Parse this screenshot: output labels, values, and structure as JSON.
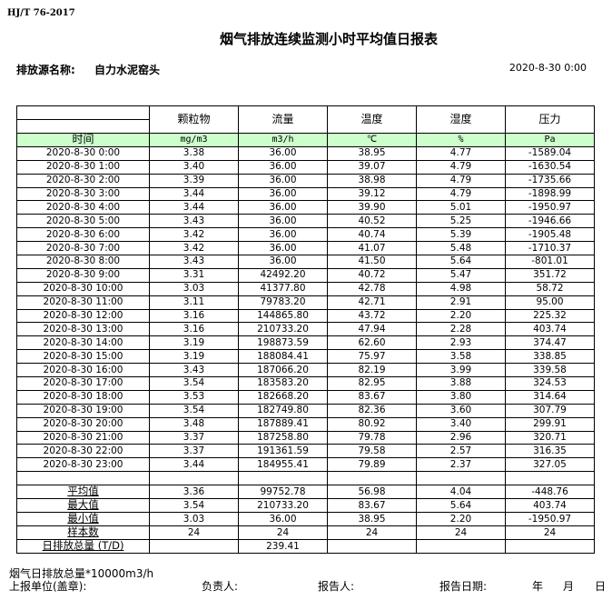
{
  "standard": "HJ/T  76-2017",
  "title": "烟气排放连续监测小时平均值日报表",
  "source_label": "排放源名称:",
  "source_name": "自力水泥窑头",
  "report_datetime": "2020-8-30 0:00",
  "columns": [
    "颗粒物",
    "流量",
    "温度",
    "湿度",
    "压力"
  ],
  "units": {
    "time": "时间",
    "values": [
      "mg/m3",
      "m3/h",
      "℃",
      "%",
      "Pa"
    ]
  },
  "header_fill_color": "#ccffcc",
  "rows": [
    [
      "2020-8-30 0:00",
      "3.38",
      "36.00",
      "38.95",
      "4.77",
      "-1589.04"
    ],
    [
      "2020-8-30 1:00",
      "3.40",
      "36.00",
      "39.07",
      "4.79",
      "-1630.54"
    ],
    [
      "2020-8-30 2:00",
      "3.39",
      "36.00",
      "38.98",
      "4.79",
      "-1735.66"
    ],
    [
      "2020-8-30 3:00",
      "3.44",
      "36.00",
      "39.12",
      "4.79",
      "-1898.99"
    ],
    [
      "2020-8-30 4:00",
      "3.44",
      "36.00",
      "39.90",
      "5.01",
      "-1950.97"
    ],
    [
      "2020-8-30 5:00",
      "3.43",
      "36.00",
      "40.52",
      "5.25",
      "-1946.66"
    ],
    [
      "2020-8-30 6:00",
      "3.42",
      "36.00",
      "40.74",
      "5.39",
      "-1905.48"
    ],
    [
      "2020-8-30 7:00",
      "3.42",
      "36.00",
      "41.07",
      "5.48",
      "-1710.37"
    ],
    [
      "2020-8-30 8:00",
      "3.43",
      "36.00",
      "41.50",
      "5.64",
      "-801.01"
    ],
    [
      "2020-8-30 9:00",
      "3.31",
      "42492.20",
      "40.72",
      "5.47",
      "351.72"
    ],
    [
      "2020-8-30 10:00",
      "3.03",
      "41377.80",
      "42.78",
      "4.98",
      "58.72"
    ],
    [
      "2020-8-30 11:00",
      "3.11",
      "79783.20",
      "42.71",
      "2.91",
      "95.00"
    ],
    [
      "2020-8-30 12:00",
      "3.16",
      "144865.80",
      "43.72",
      "2.20",
      "225.32"
    ],
    [
      "2020-8-30 13:00",
      "3.16",
      "210733.20",
      "47.94",
      "2.28",
      "403.74"
    ],
    [
      "2020-8-30 14:00",
      "3.19",
      "198873.59",
      "62.60",
      "2.93",
      "374.47"
    ],
    [
      "2020-8-30 15:00",
      "3.19",
      "188084.41",
      "75.97",
      "3.58",
      "338.85"
    ],
    [
      "2020-8-30 16:00",
      "3.43",
      "187066.20",
      "82.19",
      "3.99",
      "339.58"
    ],
    [
      "2020-8-30 17:00",
      "3.54",
      "183583.20",
      "82.95",
      "3.88",
      "324.53"
    ],
    [
      "2020-8-30 18:00",
      "3.53",
      "182668.20",
      "83.67",
      "3.80",
      "314.64"
    ],
    [
      "2020-8-30 19:00",
      "3.54",
      "182749.80",
      "82.36",
      "3.60",
      "307.79"
    ],
    [
      "2020-8-30 20:00",
      "3.48",
      "187889.41",
      "80.92",
      "3.40",
      "299.91"
    ],
    [
      "2020-8-30 21:00",
      "3.37",
      "187258.80",
      "79.78",
      "2.96",
      "320.71"
    ],
    [
      "2020-8-30 22:00",
      "3.37",
      "191361.59",
      "79.58",
      "2.57",
      "316.35"
    ],
    [
      "2020-8-30 23:00",
      "3.44",
      "184955.41",
      "79.89",
      "2.37",
      "327.05"
    ]
  ],
  "summary": [
    [
      "平均值",
      "3.36",
      "99752.78",
      "56.98",
      "4.04",
      "-448.76"
    ],
    [
      "最大值",
      "3.54",
      "210733.20",
      "83.67",
      "5.64",
      "403.74"
    ],
    [
      "最小值",
      "3.03",
      "36.00",
      "38.95",
      "2.20",
      "-1950.97"
    ],
    [
      "样本数",
      "24",
      "24",
      "24",
      "24",
      "24"
    ],
    [
      "日排放总量 (T/D)",
      "",
      "239.41",
      "",
      "",
      ""
    ]
  ],
  "footer": {
    "note": "烟气日排放总量*10000m3/h",
    "unit_label": "上报单位(盖章):",
    "responsible_label": "负责人:",
    "reporter_label": "报告人:",
    "report_date_label": "报告日期:",
    "year": "年",
    "month": "月",
    "day": "日"
  }
}
